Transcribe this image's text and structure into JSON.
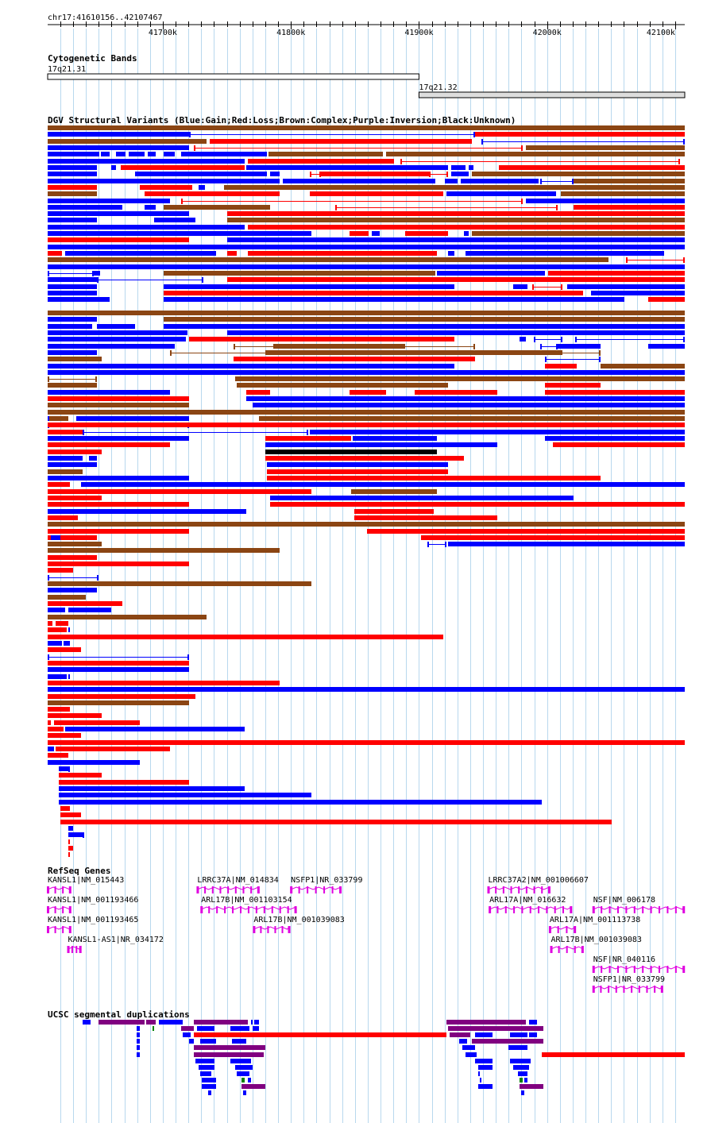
{
  "ruler": {
    "range_label": "chr17:41610156..42107467",
    "start": 41610156,
    "end": 42107467,
    "tick_labels": [
      "41700k",
      "41800k",
      "41900k",
      "42000k",
      "42100k"
    ]
  },
  "tracks": {
    "cyto": {
      "title": "Cytogenetic Bands",
      "bands": [
        {
          "name": "17q21.31",
          "start": 41610156,
          "end": 41900000,
          "color": "#ffffff"
        },
        {
          "name": "17q21.32",
          "start": 41900000,
          "end": 42107467,
          "color": "#dddddd"
        }
      ]
    },
    "dgv": {
      "title": "DGV Structural Variants (Blue:Gain;Red:Loss;Brown:Complex;Purple:Inversion;Black:Unknown)"
    },
    "refseq": {
      "title": "RefSeq Genes",
      "genes": [
        {
          "label": "KANSL1|NM_015443",
          "start": 41610156,
          "end": 41628000,
          "row": 0
        },
        {
          "label": "LRRC37A|NM_014834",
          "start": 41727000,
          "end": 41775000,
          "row": 0
        },
        {
          "label": "NSFP1|NR_033799",
          "start": 41800000,
          "end": 41839000,
          "row": 0
        },
        {
          "label": "LRRC37A2|NM_001006607",
          "start": 41954000,
          "end": 42002000,
          "row": 0
        },
        {
          "label": "KANSL1|NM_001193466",
          "start": 41610156,
          "end": 41628000,
          "row": 1
        },
        {
          "label": "ARL17B|NM_001103154",
          "start": 41730000,
          "end": 41804000,
          "row": 1
        },
        {
          "label": "ARL17A|NM_016632",
          "start": 41955000,
          "end": 42019000,
          "row": 1
        },
        {
          "label": "NSF|NM_006178",
          "start": 42036000,
          "end": 42107000,
          "row": 1
        },
        {
          "label": "KANSL1|NM_001193465",
          "start": 41610156,
          "end": 41628000,
          "row": 2
        },
        {
          "label": "ARL17B|NM_001039083",
          "start": 41771000,
          "end": 41799000,
          "row": 2
        },
        {
          "label": "ARL17A|NM_001113738",
          "start": 42002000,
          "end": 42022000,
          "row": 2
        },
        {
          "label": "KANSL1-AS1|NR_034172",
          "start": 41626000,
          "end": 41636000,
          "row": 3
        },
        {
          "label": "ARL17B|NM_001039083",
          "start": 42003000,
          "end": 42028000,
          "row": 3
        },
        {
          "label": "NSF|NR_040116",
          "start": 42036000,
          "end": 42107000,
          "row": 4
        },
        {
          "label": "NSFP1|NR_033799",
          "start": 42036000,
          "end": 42090000,
          "row": 5
        }
      ]
    },
    "segdup": {
      "title": "UCSC segmental duplications"
    }
  },
  "colors": {
    "gain": "#0000ff",
    "loss": "#ff0000",
    "complex": "#8b4513",
    "inversion": "#800080",
    "unknown": "#000000",
    "gene": "#e000e0",
    "segdup_green": "#008000",
    "grid": "#b8d8ee"
  }
}
